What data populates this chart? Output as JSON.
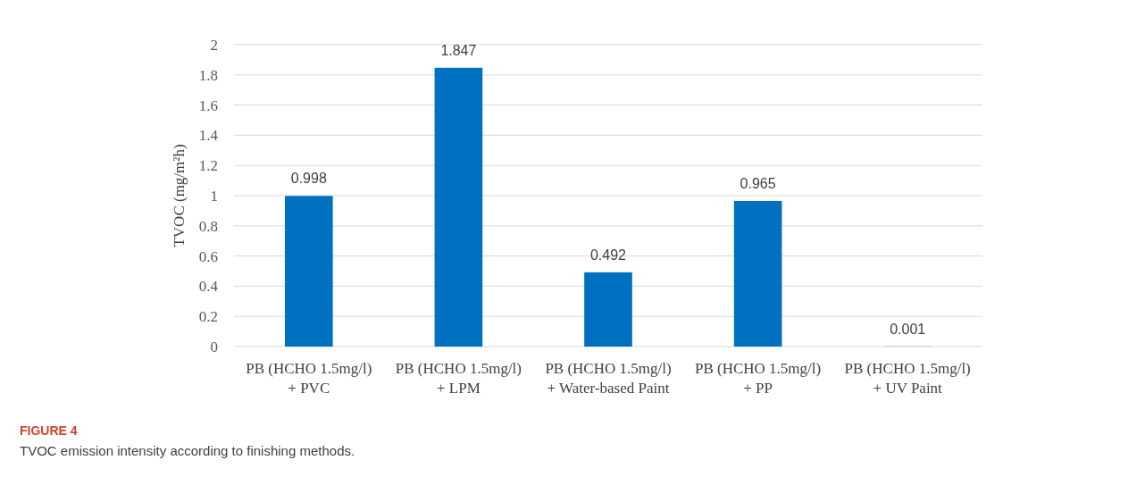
{
  "chart_data": {
    "type": "bar",
    "ylabel": "TVOC (mg/m²h)",
    "categories": [
      "PB (HCHO 1.5mg/l)\n+ PVC",
      "PB (HCHO 1.5mg/l)\n+ LPM",
      "PB (HCHO 1.5mg/l)\n+ Water-based Paint",
      "PB (HCHO 1.5mg/l)\n+ PP",
      "PB (HCHO 1.5mg/l)\n+ UV Paint"
    ],
    "values": [
      0.998,
      1.847,
      0.492,
      0.965,
      0.001
    ],
    "color": "#0070c0",
    "ylim": [
      0,
      2
    ],
    "yticks": [
      0,
      {
        "value": 0.2,
        "label": "0.2"
      },
      {
        "value": 0.4,
        "label": "0.4"
      },
      {
        "value": 0.6,
        "label": "0.6"
      },
      {
        "value": 0.8,
        "label": "0.8"
      },
      1,
      {
        "value": 1.2,
        "label": "1.2"
      },
      {
        "value": 1.4,
        "label": "1.4"
      },
      {
        "value": 1.6,
        "label": "1.6"
      },
      {
        "value": 1.8,
        "label": "1.8"
      },
      2
    ],
    "grid": "y",
    "data_labels": true,
    "annotations": [
      "FIGURE 4",
      "TVOC emission intensity according to finishing methods."
    ]
  }
}
